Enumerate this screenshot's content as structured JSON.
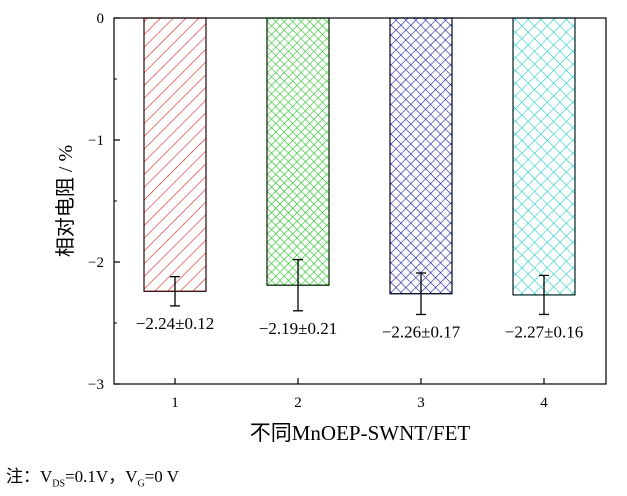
{
  "chart_data": {
    "type": "bar",
    "categories": [
      "1",
      "2",
      "3",
      "4"
    ],
    "values": [
      -2.24,
      -2.19,
      -2.26,
      -2.27
    ],
    "errors": [
      0.12,
      0.21,
      0.17,
      0.16
    ],
    "value_labels": [
      "−2.24±0.12",
      "−2.19±0.21",
      "−2.26±0.17",
      "−2.27±0.16"
    ],
    "ylabel": "相对电阻 / %",
    "xlabel": "不同MnOEP-SWNT/FET",
    "ylim": [
      -3,
      0
    ],
    "yticks": [
      0,
      -1,
      -2,
      -3
    ],
    "ytick_labels": [
      "0",
      "−1",
      "−2",
      "−3"
    ],
    "grid": false,
    "bar_colors": [
      "#e03030",
      "#22cc22",
      "#2222aa",
      "#22cccc"
    ],
    "bar_patterns": [
      "diagonal",
      "crosshatch",
      "crosshatch",
      "crosshatch"
    ]
  },
  "note": {
    "prefix": "注：",
    "vds_main": "V",
    "vds_sub": "DS",
    "vds_value": "=0.1V，",
    "vg_main": "V",
    "vg_sub": "G",
    "vg_value": "=0 V"
  }
}
